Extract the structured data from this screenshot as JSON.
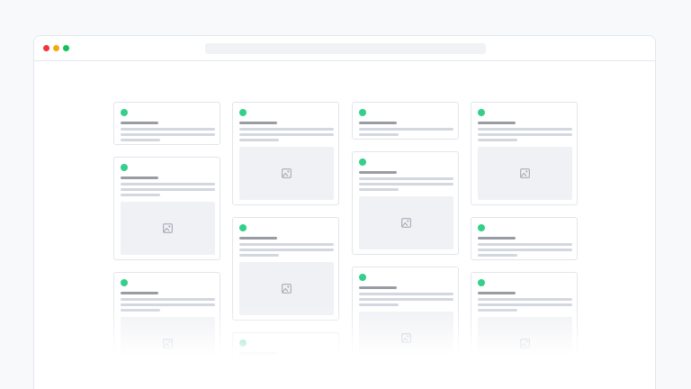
{
  "window": {
    "controls": [
      {
        "name": "close",
        "color": "#f4343c"
      },
      {
        "name": "minimize",
        "color": "#f4aa0c"
      },
      {
        "name": "maximize",
        "color": "#13c15a"
      }
    ],
    "address_bar_value": ""
  },
  "colors": {
    "status_dot": "#34cf8a",
    "title_bar": "#9a9ca4",
    "text_line": "#d3d7df",
    "image_bg": "#f0f1f5"
  },
  "columns": [
    {
      "cards": [
        {
          "lines": 3,
          "image": false
        },
        {
          "lines": 3,
          "image": true
        },
        {
          "lines": 3,
          "image": true
        }
      ]
    },
    {
      "cards": [
        {
          "lines": 3,
          "image": true
        },
        {
          "lines": 3,
          "image": true
        },
        {
          "lines": 3,
          "image": true
        }
      ]
    },
    {
      "cards": [
        {
          "lines": 2,
          "image": false
        },
        {
          "lines": 3,
          "image": true
        },
        {
          "lines": 3,
          "image": true
        }
      ]
    },
    {
      "cards": [
        {
          "lines": 3,
          "image": true
        },
        {
          "lines": 3,
          "image": false
        },
        {
          "lines": 3,
          "image": true
        }
      ]
    }
  ]
}
